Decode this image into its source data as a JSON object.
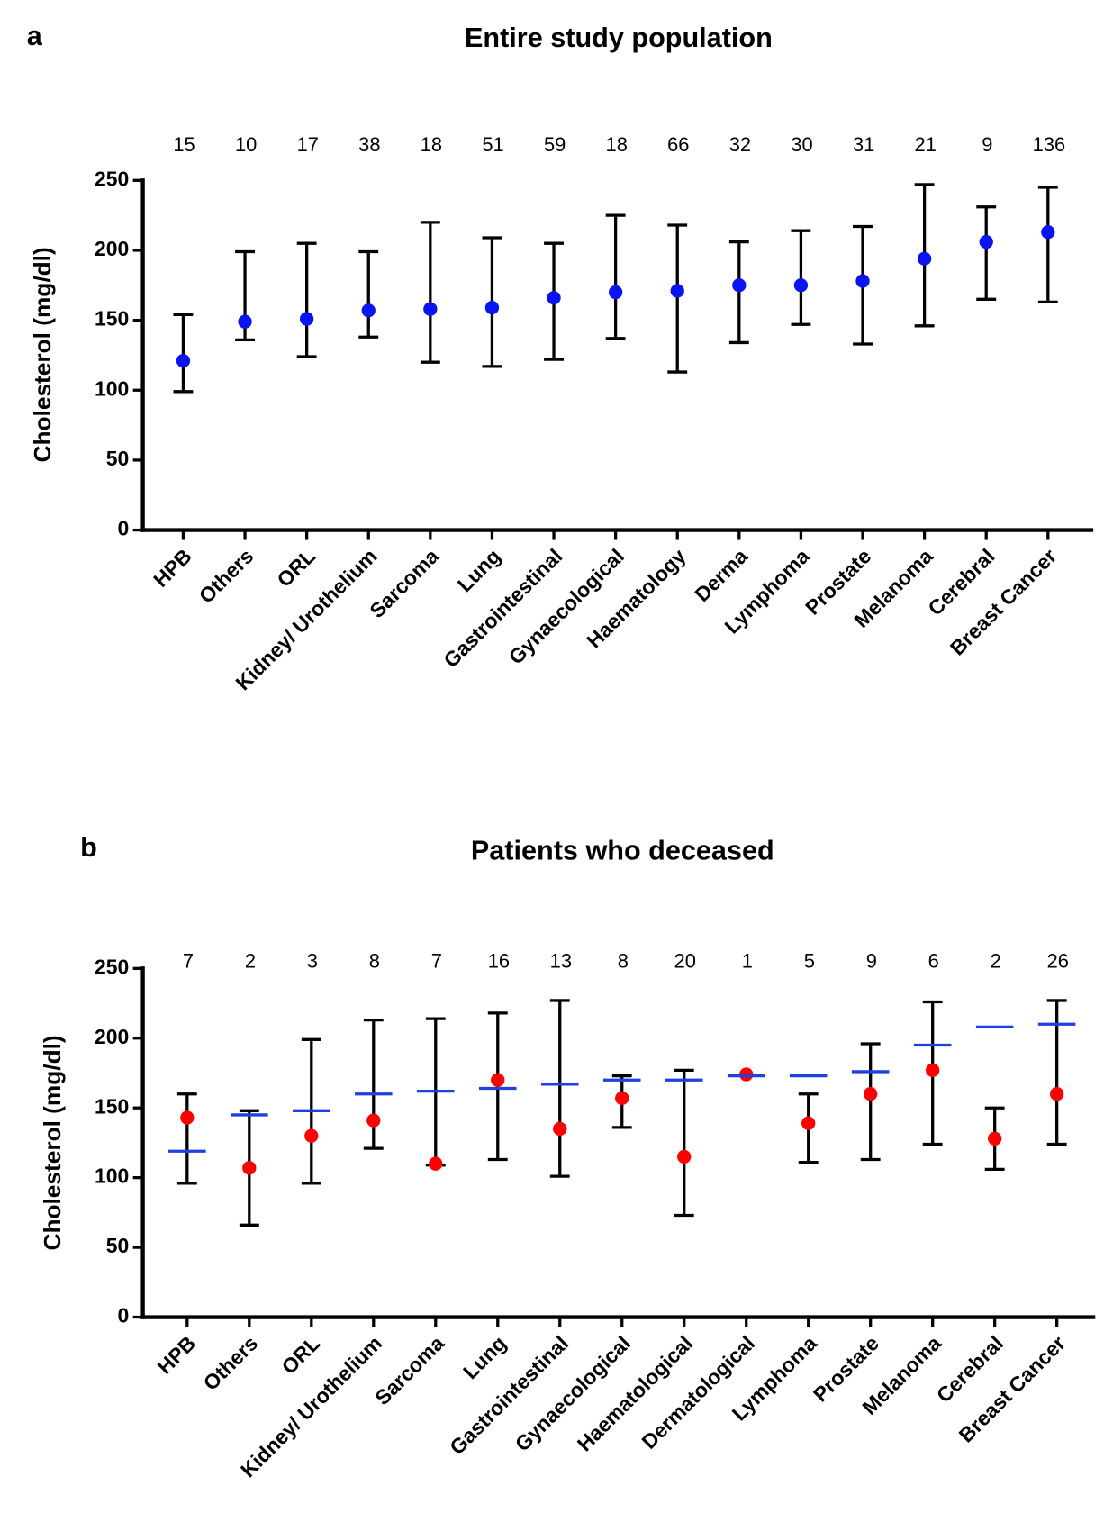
{
  "chart_data": [
    {
      "type": "errorbar",
      "panel": "a",
      "title": "Entire study population",
      "ylabel": "Cholesterol (mg/dl)",
      "categories": [
        "HPB",
        "Others",
        "ORL",
        "Kidney/ Urothelium",
        "Sarcoma",
        "Lung",
        "Gastrointestinal",
        "Gynaecological",
        "Haematology",
        "Derma",
        "Lymphoma",
        "Prostate",
        "Melanoma",
        "Cerebral",
        "Breast Cancer"
      ],
      "counts": [
        15,
        10,
        17,
        38,
        18,
        51,
        59,
        18,
        66,
        32,
        30,
        31,
        21,
        9,
        136
      ],
      "series": [
        {
          "color": "#0a14f0",
          "marker": "dot",
          "values": [
            121,
            149,
            151,
            157,
            158,
            159,
            166,
            170,
            171,
            175,
            175,
            178,
            194,
            206,
            213
          ],
          "low": [
            99,
            136,
            124,
            138,
            120,
            117,
            122,
            137,
            113,
            134,
            147,
            133,
            146,
            165,
            163
          ],
          "high": [
            154,
            199,
            205,
            199,
            220,
            209,
            205,
            225,
            218,
            206,
            214,
            217,
            247,
            231,
            245
          ]
        }
      ],
      "ylim": [
        0,
        250
      ],
      "yticks": [
        0,
        50,
        100,
        150,
        200,
        250
      ]
    },
    {
      "type": "errorbar",
      "panel": "b",
      "title": "Patients who deceased",
      "ylabel": "Cholesterol (mg/dl)",
      "categories": [
        "HPB",
        "Others",
        "ORL",
        "Kidney/ Urothelium",
        "Sarcoma",
        "Lung",
        "Gastrointestinal",
        "Gynaecological",
        "Haematological",
        "Dermatological",
        "Lymphoma",
        "Prostate",
        "Melanoma",
        "Cerebral",
        "Breast Cancer"
      ],
      "counts": [
        7,
        2,
        3,
        8,
        7,
        16,
        13,
        8,
        20,
        1,
        5,
        9,
        6,
        2,
        26
      ],
      "series": [
        {
          "color": "#ff0000",
          "marker": "dot",
          "values": [
            143,
            107,
            130,
            141,
            110,
            170,
            135,
            157,
            115,
            174,
            139,
            160,
            177,
            128,
            160
          ],
          "low": [
            96,
            66,
            96,
            121,
            109,
            113,
            101,
            136,
            73,
            null,
            111,
            113,
            124,
            106,
            124
          ],
          "high": [
            160,
            148,
            199,
            213,
            214,
            218,
            227,
            173,
            177,
            null,
            160,
            196,
            226,
            150,
            227
          ]
        },
        {
          "color": "#1f3fe0",
          "marker": "dash",
          "values": [
            119,
            145,
            148,
            160,
            162,
            164,
            167,
            170,
            170,
            173,
            173,
            176,
            195,
            208,
            210
          ]
        }
      ],
      "ylim": [
        0,
        250
      ],
      "yticks": [
        0,
        50,
        100,
        150,
        200,
        250
      ]
    }
  ]
}
